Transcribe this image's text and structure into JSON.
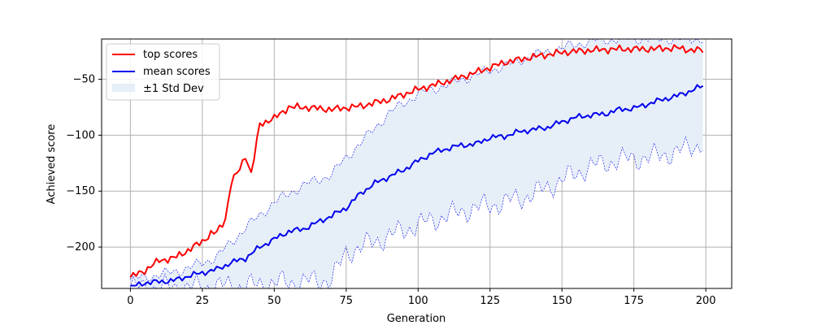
{
  "chart_data": {
    "type": "line",
    "title": "",
    "xlabel": "Generation",
    "ylabel": "Achieved score",
    "xlim": [
      -10,
      209
    ],
    "ylim": [
      -237,
      -14
    ],
    "xticks": [
      0,
      25,
      50,
      75,
      100,
      125,
      150,
      175,
      200
    ],
    "yticks": [
      -200,
      -150,
      -100,
      -50
    ],
    "grid": true,
    "legend_position": "top-left",
    "legend": [
      "top scores",
      "mean scores",
      "±1 Std Dev"
    ],
    "colors": {
      "top": "#ff0000",
      "mean": "#0000ee",
      "band_fill": "#e6eff8",
      "band_edge": "#0000ee"
    },
    "series": [
      {
        "name": "top scores",
        "x": [
          0,
          5,
          10,
          15,
          20,
          25,
          28,
          30,
          33,
          35,
          38,
          40,
          42,
          45,
          47,
          50,
          55,
          60,
          70,
          80,
          90,
          100,
          110,
          120,
          130,
          140,
          150,
          160,
          170,
          180,
          190,
          195,
          199
        ],
        "values": [
          -227,
          -221,
          -212,
          -210,
          -203,
          -195,
          -188,
          -187,
          -175,
          -143,
          -130,
          -118,
          -135,
          -90,
          -88,
          -85,
          -75,
          -75,
          -77,
          -74,
          -68,
          -59,
          -52,
          -44,
          -35,
          -30,
          -26,
          -24,
          -23,
          -23,
          -22,
          -24,
          -24
        ]
      },
      {
        "name": "mean scores",
        "x": [
          0,
          5,
          10,
          15,
          20,
          25,
          30,
          35,
          40,
          45,
          50,
          55,
          60,
          65,
          70,
          75,
          80,
          85,
          90,
          95,
          100,
          105,
          110,
          115,
          120,
          125,
          130,
          135,
          140,
          145,
          150,
          155,
          160,
          165,
          170,
          175,
          180,
          185,
          190,
          195,
          199
        ],
        "values": [
          -236,
          -232,
          -231,
          -230,
          -226,
          -223,
          -220,
          -214,
          -210,
          -200,
          -193,
          -186,
          -184,
          -178,
          -172,
          -165,
          -152,
          -143,
          -137,
          -131,
          -123,
          -116,
          -112,
          -109,
          -108,
          -102,
          -101,
          -97,
          -95,
          -93,
          -88,
          -84,
          -82,
          -81,
          -77,
          -76,
          -72,
          -68,
          -65,
          -60,
          -56
        ]
      }
    ],
    "band": {
      "name": "±1 Std Dev",
      "x": [
        0,
        10,
        20,
        30,
        40,
        50,
        60,
        70,
        75,
        80,
        90,
        100,
        110,
        120,
        130,
        140,
        150,
        160,
        170,
        180,
        190,
        199
      ],
      "upper": [
        -229,
        -225,
        -219,
        -209,
        -183,
        -160,
        -145,
        -135,
        -120,
        -107,
        -80,
        -63,
        -55,
        -46,
        -38,
        -29,
        -22,
        -16,
        -14,
        -14,
        -14,
        -14
      ],
      "lower": [
        -236,
        -236,
        -236,
        -235,
        -235,
        -232,
        -231,
        -229,
        -205,
        -200,
        -190,
        -180,
        -172,
        -165,
        -160,
        -153,
        -140,
        -128,
        -122,
        -120,
        -115,
        -107
      ]
    }
  }
}
